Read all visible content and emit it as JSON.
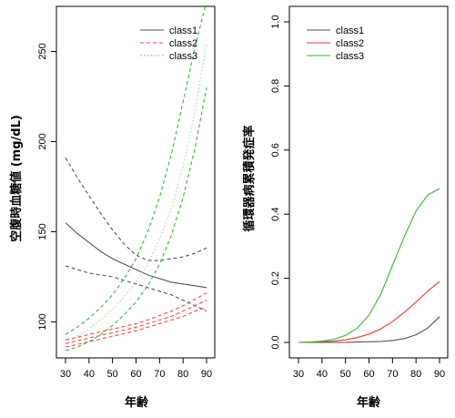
{
  "chart_data": [
    {
      "type": "line",
      "xlabel": "年齢",
      "ylabel": "空腹時血糖値 (mg/dL)",
      "xlim": [
        30,
        90
      ],
      "ylim": [
        80,
        275
      ],
      "xticks": [
        30,
        40,
        50,
        60,
        70,
        80,
        90
      ],
      "yticks": [
        100,
        150,
        200,
        250
      ],
      "legend": {
        "position": "top-right",
        "entries": [
          {
            "label": "class1",
            "color": "#555555",
            "dash": "solid"
          },
          {
            "label": "class2",
            "color": "#ff4444",
            "dash": "dashed"
          },
          {
            "label": "class3",
            "color": "#44cc44",
            "dash": "dotted"
          }
        ]
      },
      "series": [
        {
          "name": "class1",
          "role": "estimate",
          "color": "#555555",
          "dash": "solid",
          "x": [
            30,
            35,
            40,
            45,
            50,
            55,
            60,
            65,
            70,
            75,
            80,
            85,
            90
          ],
          "y": [
            155,
            149,
            144,
            139,
            135,
            132,
            129,
            126,
            124,
            122,
            121,
            120,
            119
          ]
        },
        {
          "name": "class1",
          "role": "upper",
          "color": "#555555",
          "dash": "dashed",
          "x": [
            30,
            35,
            40,
            45,
            50,
            55,
            60,
            65,
            70,
            75,
            80,
            85,
            90
          ],
          "y": [
            191,
            180,
            170,
            160,
            151,
            143,
            137,
            134,
            134,
            135,
            136,
            138,
            141
          ]
        },
        {
          "name": "class1",
          "role": "lower",
          "color": "#555555",
          "dash": "dashed",
          "x": [
            30,
            35,
            40,
            45,
            50,
            55,
            60,
            65,
            70,
            75,
            80,
            85,
            90
          ],
          "y": [
            131,
            129,
            127,
            126,
            125,
            123,
            121,
            119,
            117,
            115,
            112,
            109,
            106
          ]
        },
        {
          "name": "class2",
          "role": "estimate",
          "color": "#ff4444",
          "dash": "dashed",
          "x": [
            30,
            35,
            40,
            45,
            50,
            55,
            60,
            65,
            70,
            75,
            80,
            85,
            90
          ],
          "y": [
            88,
            89.5,
            91,
            92.5,
            94,
            95.5,
            97,
            99,
            101,
            103,
            106,
            109,
            112
          ]
        },
        {
          "name": "class2",
          "role": "upper",
          "color": "#ff4444",
          "dash": "dashed",
          "x": [
            30,
            35,
            40,
            45,
            50,
            55,
            60,
            65,
            70,
            75,
            80,
            85,
            90
          ],
          "y": [
            90,
            91.5,
            93,
            94.5,
            96,
            97.5,
            99,
            101,
            103.5,
            106,
            109,
            112.5,
            116
          ]
        },
        {
          "name": "class2",
          "role": "lower",
          "color": "#ff4444",
          "dash": "dashed",
          "x": [
            30,
            35,
            40,
            45,
            50,
            55,
            60,
            65,
            70,
            75,
            80,
            85,
            90
          ],
          "y": [
            86,
            87.5,
            89,
            90.5,
            92,
            93.5,
            95,
            97,
            99,
            101,
            103,
            106,
            108
          ]
        },
        {
          "name": "class3",
          "role": "estimate",
          "color": "#99dd99",
          "dash": "dotted",
          "x": [
            30,
            35,
            40,
            45,
            50,
            55,
            60,
            65,
            70,
            75,
            80,
            85,
            90
          ],
          "y": [
            88,
            92,
            96,
            101,
            107,
            114,
            122,
            132,
            146,
            163,
            186,
            216,
            255
          ]
        },
        {
          "name": "class3",
          "role": "upper",
          "color": "#33bb33",
          "dash": "dashed",
          "x": [
            30,
            35,
            40,
            45,
            50,
            55,
            60,
            65,
            70,
            75,
            80,
            85,
            90
          ],
          "y": [
            93,
            97,
            102,
            108,
            115,
            124,
            135,
            150,
            169,
            193,
            222,
            252,
            278
          ]
        },
        {
          "name": "class3",
          "role": "lower",
          "color": "#33bb33",
          "dash": "dashed",
          "x": [
            30,
            35,
            40,
            45,
            50,
            55,
            60,
            65,
            70,
            75,
            80,
            85,
            90
          ],
          "y": [
            84,
            86,
            89,
            93,
            98,
            104,
            111,
            120,
            132,
            148,
            169,
            196,
            230
          ]
        }
      ]
    },
    {
      "type": "line",
      "xlabel": "年齢",
      "ylabel": "循環器病累積発症率",
      "xlim": [
        30,
        90
      ],
      "ylim": [
        0,
        1
      ],
      "xticks": [
        30,
        40,
        50,
        60,
        70,
        80,
        90
      ],
      "yticks": [
        0.0,
        0.2,
        0.4,
        0.6,
        0.8,
        1.0
      ],
      "legend": {
        "position": "top-left",
        "entries": [
          {
            "label": "class1",
            "color": "#555555",
            "dash": "solid"
          },
          {
            "label": "class2",
            "color": "#ff3333",
            "dash": "solid"
          },
          {
            "label": "class3",
            "color": "#33bb33",
            "dash": "solid"
          }
        ]
      },
      "series": [
        {
          "name": "class1",
          "color": "#555555",
          "dash": "solid",
          "x": [
            30,
            35,
            40,
            45,
            50,
            55,
            60,
            65,
            70,
            75,
            80,
            85,
            90
          ],
          "y": [
            0,
            0,
            0,
            0,
            0,
            0.001,
            0.002,
            0.003,
            0.006,
            0.012,
            0.024,
            0.045,
            0.08
          ]
        },
        {
          "name": "class2",
          "color": "#ff3333",
          "dash": "solid",
          "x": [
            30,
            35,
            40,
            45,
            50,
            55,
            60,
            65,
            70,
            75,
            80,
            85,
            90
          ],
          "y": [
            0,
            0.001,
            0.002,
            0.004,
            0.008,
            0.015,
            0.026,
            0.042,
            0.065,
            0.094,
            0.126,
            0.16,
            0.19
          ]
        },
        {
          "name": "class3",
          "color": "#33bb33",
          "dash": "solid",
          "x": [
            30,
            35,
            40,
            45,
            50,
            55,
            60,
            65,
            70,
            75,
            80,
            85,
            90
          ],
          "y": [
            0,
            0.001,
            0.004,
            0.01,
            0.022,
            0.045,
            0.085,
            0.15,
            0.24,
            0.33,
            0.41,
            0.46,
            0.48
          ]
        }
      ]
    }
  ]
}
